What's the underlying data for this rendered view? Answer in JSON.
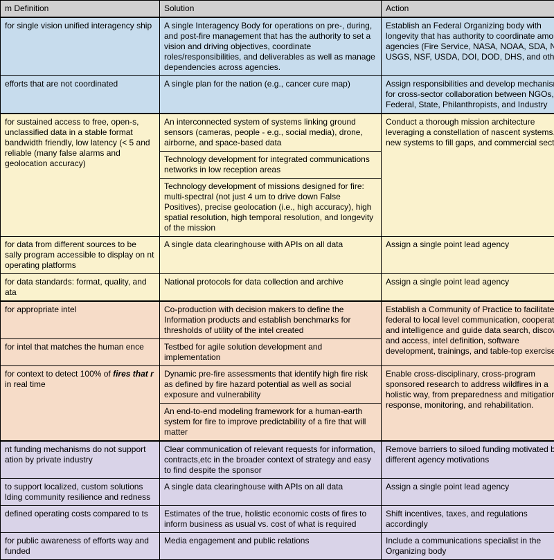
{
  "headers": {
    "c1": "m Definition",
    "c2": "Solution",
    "c3": "Action"
  },
  "rows": [
    {
      "sec": "blue",
      "sep": true,
      "c1": "for single vision unified interagency ship",
      "c2": "A single Interagency Body for operations on pre-, during, and post-fire management that has the authority to set a vision and driving objectives, coordinate roles/responsibilities, and deliverables as well as manage dependencies across agencies.",
      "c3": "Establish an Federal Organizing body with longevity that has authority to coordinate among agencies (Fire Service, NASA, NOAA, SDA, NGA, USGS, NSF, USDA, DOI, DOD, DHS, and others)"
    },
    {
      "sec": "blue",
      "c1": "efforts that are not coordinated",
      "c2": "A single plan for the nation (e.g., cancer cure map)",
      "c3": "Assign responsibilities and develop mechanisms for cross-sector collaboration between NGOs, Federal, State, Philanthropists, and Industry"
    },
    {
      "sec": "yellow",
      "sep": true,
      "c1_rowspan": 3,
      "c1": "for sustained access to free, open-s, unclassified data in a stable format bandwidth friendly, low latency (< 5 and reliable (many false alarms and geolocation accuracy)",
      "c2": "An interconnected system of systems linking ground sensors (cameras, people - e.g., social media), drone, airborne, and space-based data",
      "c3_rowspan": 3,
      "c3": "Conduct a thorough mission architecture leveraging a constellation of nascent systems, new systems to fill gaps, and commercial sector."
    },
    {
      "sec": "yellow",
      "c2": "Technology development for integrated communications networks in low reception areas"
    },
    {
      "sec": "yellow",
      "c2": "Technology development of missions designed for fire: multi-spectral (not just 4 um to drive down False Positives), precise geolocation (i.e., high accuracy), high spatial resolution, high temporal resolution, and longevity of the mission"
    },
    {
      "sec": "yellow",
      "c1": "for data from different sources to be sally program accessible to display on nt operating platforms",
      "c2": "A single data clearinghouse with APIs on all data",
      "c3": "Assign a single point lead agency"
    },
    {
      "sec": "yellow",
      "c1": "for data standards: format, quality, and ata",
      "c2": "National protocols for data collection and archive",
      "c3": "Assign a single point lead agency"
    },
    {
      "sec": "peach",
      "sep": true,
      "c1": "for appropriate intel",
      "c2": "Co-production with decision makers to define the Information products and establish benchmarks for thresholds of utility of the intel created",
      "c3_rowspan": 2,
      "c3": "Establish a Community of Practice to facilitate federal to local level communication, cooperation, and intelligence and guide data search, discovery, and access, intel definition, software development, trainings, and table-top exercises"
    },
    {
      "sec": "peach",
      "c1": "for intel that matches the human ence",
      "c2": "Testbed for agile solution development and implementation"
    },
    {
      "sec": "peach",
      "c1_rowspan": 2,
      "c1_html": "for context to detect 100% of <span class=\"italic-bold\">fires that r</span> in real time",
      "c2": "Dynamic pre-fire assessments that identify high fire risk as defined by fire hazard potential as well as social exposure and vulnerability",
      "c3_rowspan": 2,
      "c3": "Enable cross-disciplinary, cross-program sponsored research to address wildfires in a holistic way, from preparedness and mitigation to response, monitoring, and rehabilitation."
    },
    {
      "sec": "peach",
      "c2": "An end-to-end modeling framework for a human-earth system for fire to improve predictability of a fire that will matter"
    },
    {
      "sec": "violet",
      "sep": true,
      "c1": "nt funding mechanisms do not support ation by private industry",
      "c2": "Clear communication of relevant requests for information, contracts,etc in the broader context of strategy and easy to find despite the sponsor",
      "c3": "Remove barriers to siloed funding motivated by different agency motivations"
    },
    {
      "sec": "violet",
      "c1": "to support localized, custom solutions lding community resilience and redness",
      "c2": "A single data clearinghouse with APIs on all data",
      "c3": "Assign a single point lead agency"
    },
    {
      "sec": "violet",
      "c1": "defined operating costs compared to ts",
      "c2": "Estimates of the true, holistic economic costs of fires to inform business as usual vs. cost of what is required",
      "c3": "Shift incentives, taxes, and regulations accordingly"
    },
    {
      "sec": "violet",
      "c1": "for public awareness of efforts way and funded",
      "c2": "Media engagement and public relations",
      "c3": "Include a communications specialist in the Organizing body"
    }
  ],
  "colors": {
    "header_bg": "#d0d0d0",
    "blue": "#c7dced",
    "yellow": "#faf2cd",
    "peach": "#f6dcc8",
    "violet": "#d9d3e8",
    "border": "#000000"
  },
  "typography": {
    "font_family": "Arial",
    "font_size_pt": 9
  }
}
